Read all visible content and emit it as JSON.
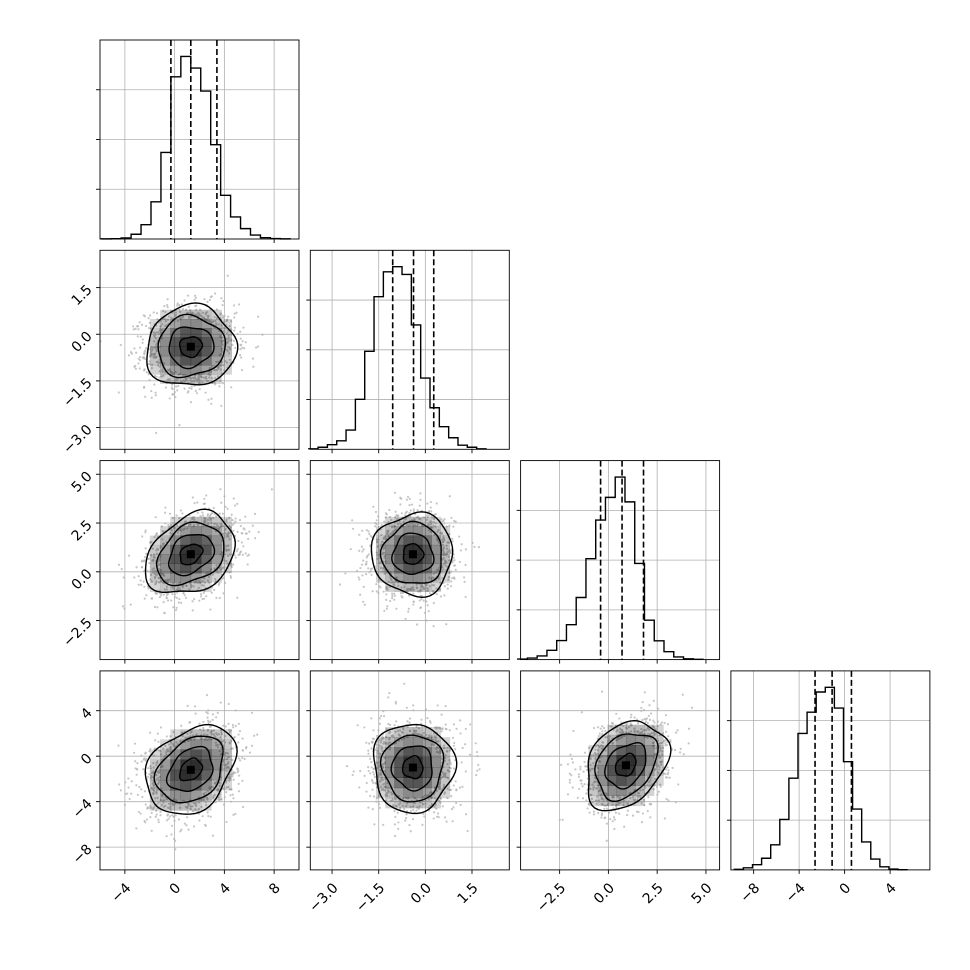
{
  "chart_data": {
    "type": "corner",
    "title": "",
    "n_params": 4,
    "params": [
      {
        "label": "",
        "range": [
          -6.0,
          10.0
        ],
        "ticks": [
          -4,
          0,
          4,
          8
        ],
        "tick_labels": [
          "−4",
          "0",
          "4",
          "8"
        ],
        "quantiles": [
          -0.3,
          1.3,
          3.4
        ]
      },
      {
        "label": "",
        "range": [
          -3.7,
          2.7
        ],
        "ticks": [
          -3.0,
          -1.5,
          0.0,
          1.5
        ],
        "tick_labels": [
          "−3.0",
          "−1.5",
          "0.0",
          "1.5"
        ],
        "quantiles": [
          -1.05,
          -0.38,
          0.27
        ]
      },
      {
        "label": "",
        "range": [
          -4.5,
          5.7
        ],
        "ticks": [
          -2.5,
          0.0,
          2.5,
          5.0
        ],
        "tick_labels": [
          "−2.5",
          "0.0",
          "2.5",
          "5.0"
        ],
        "quantiles": [
          -0.4,
          0.7,
          1.8
        ]
      },
      {
        "label": "",
        "range": [
          -10.0,
          7.5
        ],
        "ticks": [
          -8,
          -4,
          0,
          4
        ],
        "tick_labels": [
          "−8",
          "−4",
          "0",
          "4"
        ],
        "quantiles": [
          -2.6,
          -1.1,
          0.6
        ]
      }
    ],
    "histograms": [
      {
        "param": 0,
        "bins": [
          [
            -5.5,
            0.003
          ],
          [
            -4.7,
            0.006
          ],
          [
            -3.9,
            0.025
          ],
          [
            -3.1,
            0.11
          ],
          [
            -2.3,
            0.33
          ],
          [
            -1.5,
            0.86
          ],
          [
            -0.7,
            2.0
          ],
          [
            0.1,
            3.75
          ],
          [
            0.9,
            4.22
          ],
          [
            1.7,
            3.95
          ],
          [
            2.5,
            3.42
          ],
          [
            3.3,
            2.18
          ],
          [
            4.1,
            1.01
          ],
          [
            4.9,
            0.51
          ],
          [
            5.7,
            0.24
          ],
          [
            6.5,
            0.09
          ],
          [
            7.3,
            0.03
          ],
          [
            8.1,
            0.01
          ],
          [
            8.9,
            0.003
          ]
        ]
      },
      {
        "param": 1,
        "bins": [
          [
            -3.6,
            0.02
          ],
          [
            -3.3,
            0.08
          ],
          [
            -3.0,
            0.18
          ],
          [
            -2.7,
            0.33
          ],
          [
            -2.4,
            0.75
          ],
          [
            -2.1,
            1.95
          ],
          [
            -1.8,
            3.82
          ],
          [
            -1.5,
            5.95
          ],
          [
            -1.2,
            6.92
          ],
          [
            -0.9,
            7.12
          ],
          [
            -0.6,
            6.82
          ],
          [
            -0.3,
            4.85
          ],
          [
            0.0,
            2.78
          ],
          [
            0.3,
            1.62
          ],
          [
            0.6,
            0.88
          ],
          [
            0.9,
            0.45
          ],
          [
            1.2,
            0.16
          ],
          [
            1.5,
            0.08
          ],
          [
            1.8,
            0.02
          ]
        ]
      },
      {
        "param": 2,
        "bins": [
          [
            -4.4,
            0.02
          ],
          [
            -3.9,
            0.06
          ],
          [
            -3.4,
            0.14
          ],
          [
            -2.9,
            0.35
          ],
          [
            -2.4,
            0.72
          ],
          [
            -1.9,
            1.32
          ],
          [
            -1.4,
            2.35
          ],
          [
            -0.9,
            3.82
          ],
          [
            -0.4,
            5.28
          ],
          [
            0.1,
            6.14
          ],
          [
            0.6,
            6.91
          ],
          [
            1.1,
            5.97
          ],
          [
            1.6,
            3.64
          ],
          [
            2.1,
            1.49
          ],
          [
            2.6,
            0.71
          ],
          [
            3.1,
            0.3
          ],
          [
            3.6,
            0.1
          ],
          [
            4.1,
            0.03
          ],
          [
            4.6,
            0.01
          ]
        ]
      },
      {
        "param": 3,
        "bins": [
          [
            -9.3,
            0.02
          ],
          [
            -8.5,
            0.08
          ],
          [
            -7.7,
            0.2
          ],
          [
            -6.9,
            0.45
          ],
          [
            -6.1,
            0.97
          ],
          [
            -5.3,
            1.95
          ],
          [
            -4.5,
            3.54
          ],
          [
            -3.7,
            5.27
          ],
          [
            -2.9,
            6.09
          ],
          [
            -2.1,
            6.87
          ],
          [
            -1.3,
            7.05
          ],
          [
            -0.5,
            6.25
          ],
          [
            0.3,
            4.18
          ],
          [
            1.1,
            2.35
          ],
          [
            1.9,
            1.08
          ],
          [
            2.7,
            0.42
          ],
          [
            3.5,
            0.12
          ],
          [
            4.3,
            0.03
          ],
          [
            5.1,
            0.01
          ]
        ]
      }
    ],
    "joint_distributions": [
      {
        "x_param": 0,
        "y_param": 1,
        "center": [
          1.3,
          -0.4
        ],
        "sd": [
          1.8,
          0.65
        ],
        "corr": 0.05
      },
      {
        "x_param": 0,
        "y_param": 2,
        "center": [
          1.3,
          0.9
        ],
        "sd": [
          1.8,
          1.05
        ],
        "corr": 0.3
      },
      {
        "x_param": 1,
        "y_param": 2,
        "center": [
          -0.4,
          0.9
        ],
        "sd": [
          0.65,
          1.05
        ],
        "corr": 0.0
      },
      {
        "x_param": 0,
        "y_param": 3,
        "center": [
          1.3,
          -1.2
        ],
        "sd": [
          1.8,
          1.95
        ],
        "corr": 0.3
      },
      {
        "x_param": 1,
        "y_param": 3,
        "center": [
          -0.4,
          -1.0
        ],
        "sd": [
          0.65,
          1.95
        ],
        "corr": 0.0
      },
      {
        "x_param": 2,
        "y_param": 3,
        "center": [
          0.9,
          -0.8
        ],
        "sd": [
          1.05,
          1.95
        ],
        "corr": 0.3
      }
    ],
    "contour_levels_sigma": [
      0.5,
      1.0,
      1.5,
      2.0
    ],
    "grid": true,
    "colors": {
      "line": "#000000",
      "grid": "#b0b0b0",
      "scatter": "#b3b3b3",
      "density": "#000000"
    }
  }
}
